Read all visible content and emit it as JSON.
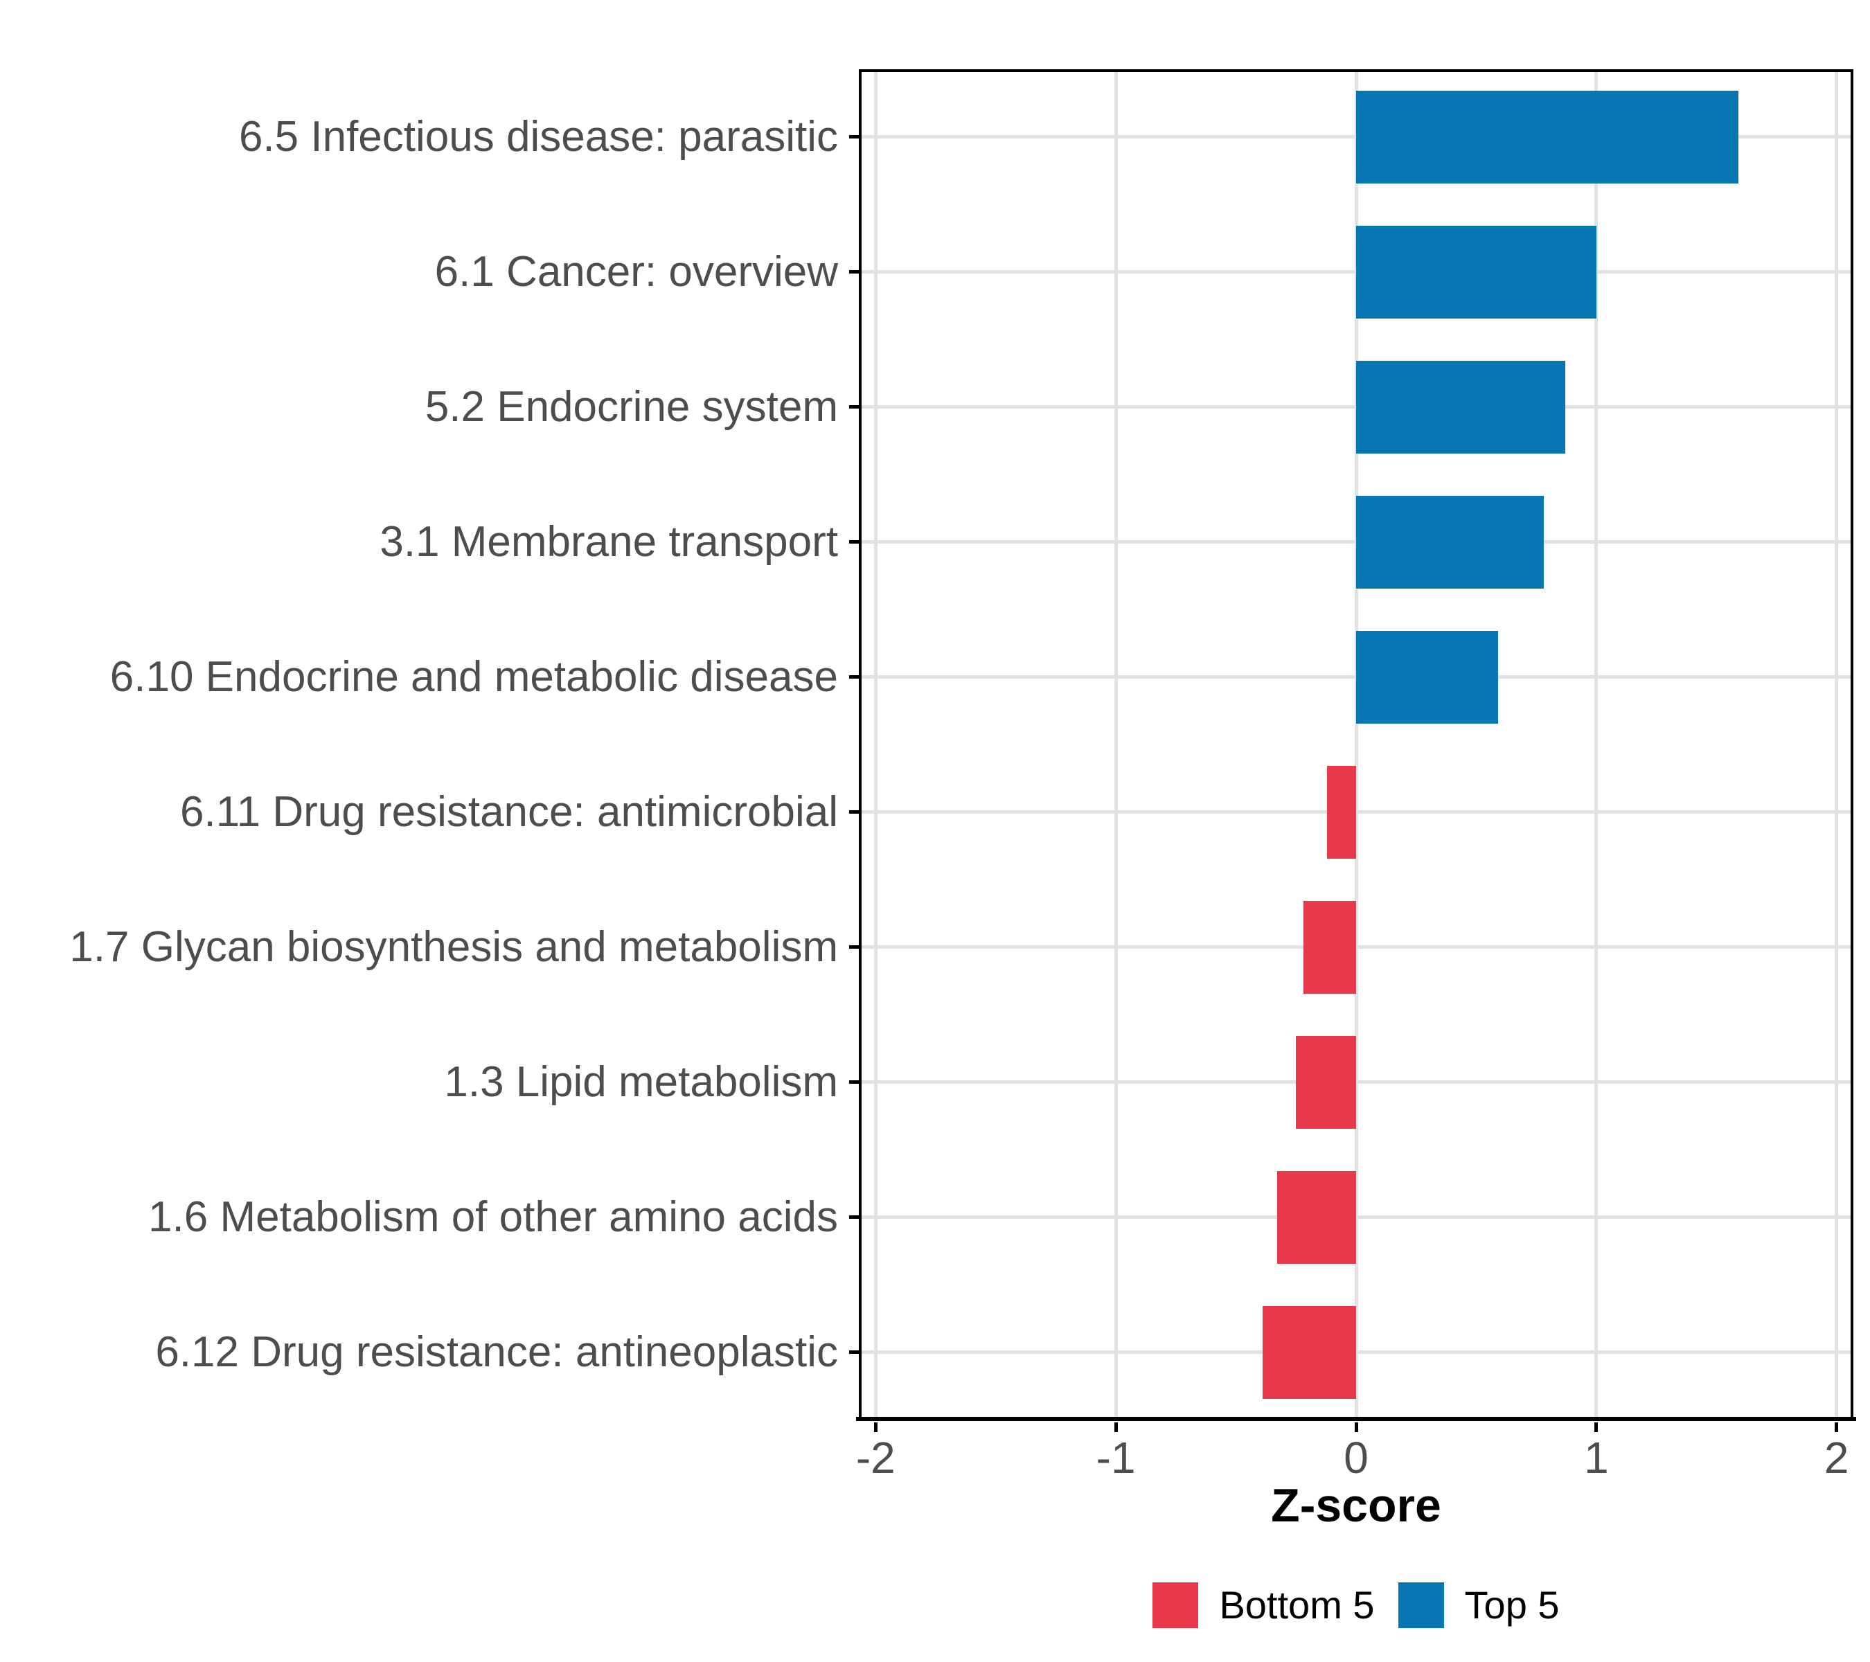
{
  "figure": {
    "background": "#FFFFFF",
    "panel_border_color": "#000000",
    "grid_color": "#E2E2E2",
    "axis_text_color": "#4D4D4D",
    "axis_title_color": "#000000",
    "legend_text_color": "#000000"
  },
  "chart_data": {
    "type": "bar",
    "orientation": "horizontal",
    "title": "",
    "xlabel": "Z-score",
    "ylabel": "",
    "x_ticks": [
      -2,
      -1,
      0,
      1,
      2
    ],
    "xlim": [
      -2.07,
      2.07
    ],
    "grid": true,
    "legend_position": "bottom",
    "categories": [
      "6.5 Infectious disease: parasitic",
      "6.1 Cancer: overview",
      "5.2 Endocrine system",
      "3.1 Membrane transport",
      "6.10 Endocrine and metabolic disease",
      "6.11 Drug resistance: antimicrobial",
      "1.7 Glycan biosynthesis and metabolism",
      "1.3 Lipid metabolism",
      "1.6 Metabolism of other amino acids",
      "6.12 Drug resistance: antineoplastic"
    ],
    "values": [
      1.59,
      1.0,
      0.87,
      0.78,
      0.59,
      -0.12,
      -0.22,
      -0.25,
      -0.33,
      -0.39
    ],
    "groups": [
      "Top 5",
      "Top 5",
      "Top 5",
      "Top 5",
      "Top 5",
      "Bottom 5",
      "Bottom 5",
      "Bottom 5",
      "Bottom 5",
      "Bottom 5"
    ],
    "colors": {
      "Bottom 5": "#E8394A",
      "Top 5": "#0777B4"
    },
    "legend": [
      {
        "label": "Bottom 5",
        "group": "Bottom 5"
      },
      {
        "label": "Top 5",
        "group": "Top 5"
      }
    ]
  }
}
